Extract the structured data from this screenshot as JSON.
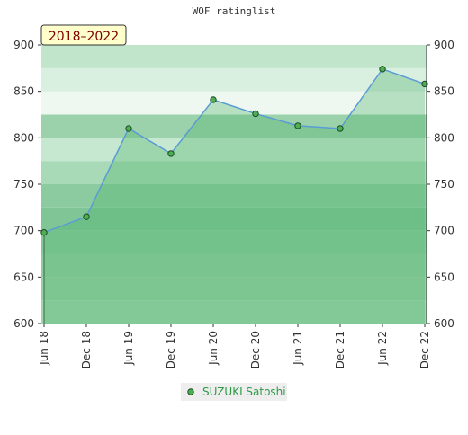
{
  "chart_data": {
    "type": "area",
    "title": "WOF ratinglist",
    "badge": "2018–2022",
    "categories": [
      "Jun 18",
      "Dec 18",
      "Jun 19",
      "Dec 19",
      "Jun 20",
      "Dec 20",
      "Jun 21",
      "Dec 21",
      "Jun 22",
      "Dec 22"
    ],
    "series": [
      {
        "name": "SUZUKI Satoshi",
        "color": "#5a9bd4",
        "marker_color": "#4caf50",
        "values": [
          698,
          715,
          810,
          783,
          841,
          826,
          813,
          810,
          874,
          858
        ]
      }
    ],
    "ylim": [
      600,
      900
    ],
    "yticks": [
      600,
      650,
      700,
      750,
      800,
      850,
      900
    ],
    "y2lim": [
      600,
      900
    ],
    "y2ticks": [
      600,
      650,
      700,
      750,
      800,
      850,
      900
    ]
  }
}
